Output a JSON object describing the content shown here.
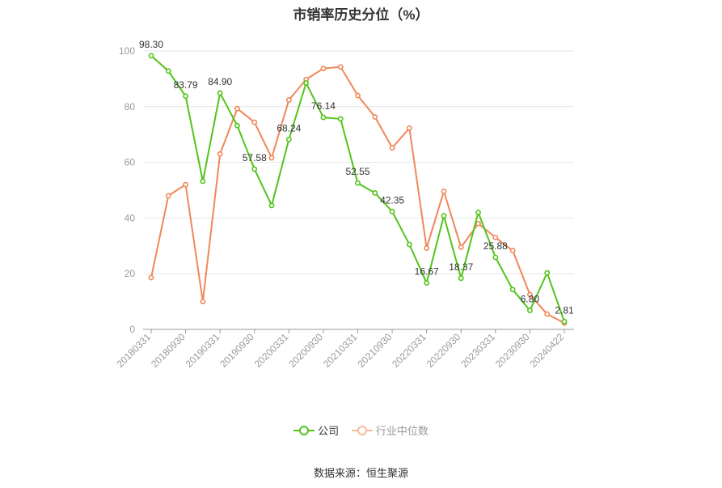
{
  "title": "市销率历史分位（%）",
  "source": "数据来源：恒生聚源",
  "chart_data": {
    "type": "line",
    "title": "市销率历史分位（%）",
    "ylim": [
      0,
      100
    ],
    "yticks": [
      0,
      20,
      40,
      60,
      80,
      100
    ],
    "xtick_labels": [
      "20180331",
      "20180930",
      "20190331",
      "20190930",
      "20200331",
      "20200930",
      "20210331",
      "20210930",
      "20220331",
      "20220930",
      "20230331",
      "20230930",
      "20240422"
    ],
    "x": [
      "20180331",
      "20180630",
      "20180930",
      "20181231",
      "20190331",
      "20190630",
      "20190930",
      "20191231",
      "20200331",
      "20200630",
      "20200930",
      "20201231",
      "20210331",
      "20210630",
      "20210930",
      "20211231",
      "20220331",
      "20220630",
      "20220930",
      "20221231",
      "20230331",
      "20230630",
      "20230930",
      "20231231",
      "20240422"
    ],
    "grid": true,
    "legend_position": "bottom",
    "series": [
      {
        "name": "公司",
        "color": "#52c41a",
        "values": [
          98.3,
          92.8,
          83.79,
          53.2,
          84.9,
          73.2,
          57.58,
          44.5,
          68.24,
          88.5,
          76.14,
          75.6,
          52.55,
          49.0,
          42.35,
          30.5,
          16.67,
          40.8,
          18.37,
          42.0,
          25.88,
          14.3,
          6.8,
          20.3,
          2.81
        ]
      },
      {
        "name": "行业中位数",
        "color": "#f0875a",
        "values": [
          18.6,
          48.0,
          52.0,
          10.0,
          63.0,
          79.3,
          74.4,
          61.6,
          82.4,
          89.8,
          93.7,
          94.3,
          84.0,
          76.3,
          65.2,
          72.3,
          29.2,
          49.6,
          29.5,
          38.0,
          33.0,
          28.3,
          12.5,
          5.5,
          2.3
        ]
      }
    ],
    "data_labels": [
      {
        "index": 0,
        "text": "98.30"
      },
      {
        "index": 2,
        "text": "83.79"
      },
      {
        "index": 4,
        "text": "84.90"
      },
      {
        "index": 6,
        "text": "57.58"
      },
      {
        "index": 8,
        "text": "68.24"
      },
      {
        "index": 10,
        "text": "76.14"
      },
      {
        "index": 12,
        "text": "52.55"
      },
      {
        "index": 14,
        "text": "42.35"
      },
      {
        "index": 16,
        "text": "16.67"
      },
      {
        "index": 18,
        "text": "18.37"
      },
      {
        "index": 20,
        "text": "25.88"
      },
      {
        "index": 22,
        "text": "6.80"
      },
      {
        "index": 24,
        "text": "2.81"
      }
    ]
  }
}
